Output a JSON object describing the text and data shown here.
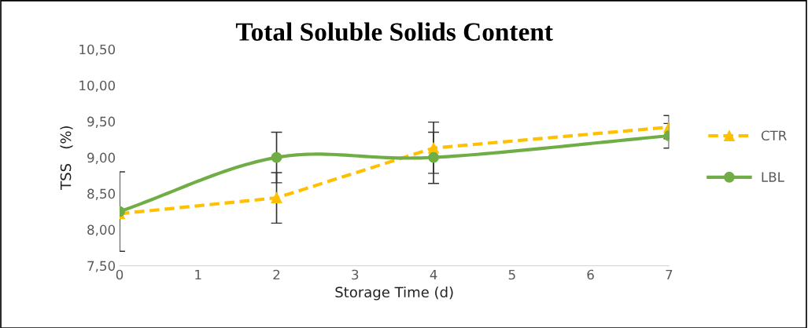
{
  "chart_data": {
    "type": "line",
    "title": "Total Soluble Solids Content",
    "xlabel": "Storage Time (d)",
    "ylabel": "TSS   (%)",
    "x": [
      0,
      2,
      4,
      7
    ],
    "series": [
      {
        "name": "CTR",
        "color": "#ffc000",
        "values": [
          8.22,
          8.44,
          9.13,
          9.42
        ],
        "errors": [
          null,
          [
            8.09,
            8.79
          ],
          [
            8.78,
            9.49
          ],
          [
            9.26,
            9.58
          ]
        ],
        "marker": "triangle",
        "line_style": "dashed"
      },
      {
        "name": "LBL",
        "color": "#70ad47",
        "values": [
          8.25,
          9.0,
          9.0,
          9.3
        ],
        "errors": [
          [
            7.7,
            8.8
          ],
          [
            8.65,
            9.35
          ],
          [
            8.64,
            9.35
          ],
          [
            9.13,
            9.47
          ]
        ],
        "marker": "circle",
        "line_style": "solid"
      }
    ],
    "xlim": [
      0,
      7
    ],
    "xticks": [
      0,
      1,
      2,
      3,
      4,
      5,
      6,
      7
    ],
    "ylim": [
      7.5,
      10.5
    ],
    "yticks": [
      {
        "value": 7.5,
        "label": "7,50"
      },
      {
        "value": 8.0,
        "label": "8,00"
      },
      {
        "value": 8.5,
        "label": "8,50"
      },
      {
        "value": 9.0,
        "label": "9,00"
      },
      {
        "value": 9.5,
        "label": "9,50"
      },
      {
        "value": 10.0,
        "label": "10,00"
      },
      {
        "value": 10.5,
        "label": "10,50"
      }
    ],
    "grid": false,
    "legend": "right"
  }
}
